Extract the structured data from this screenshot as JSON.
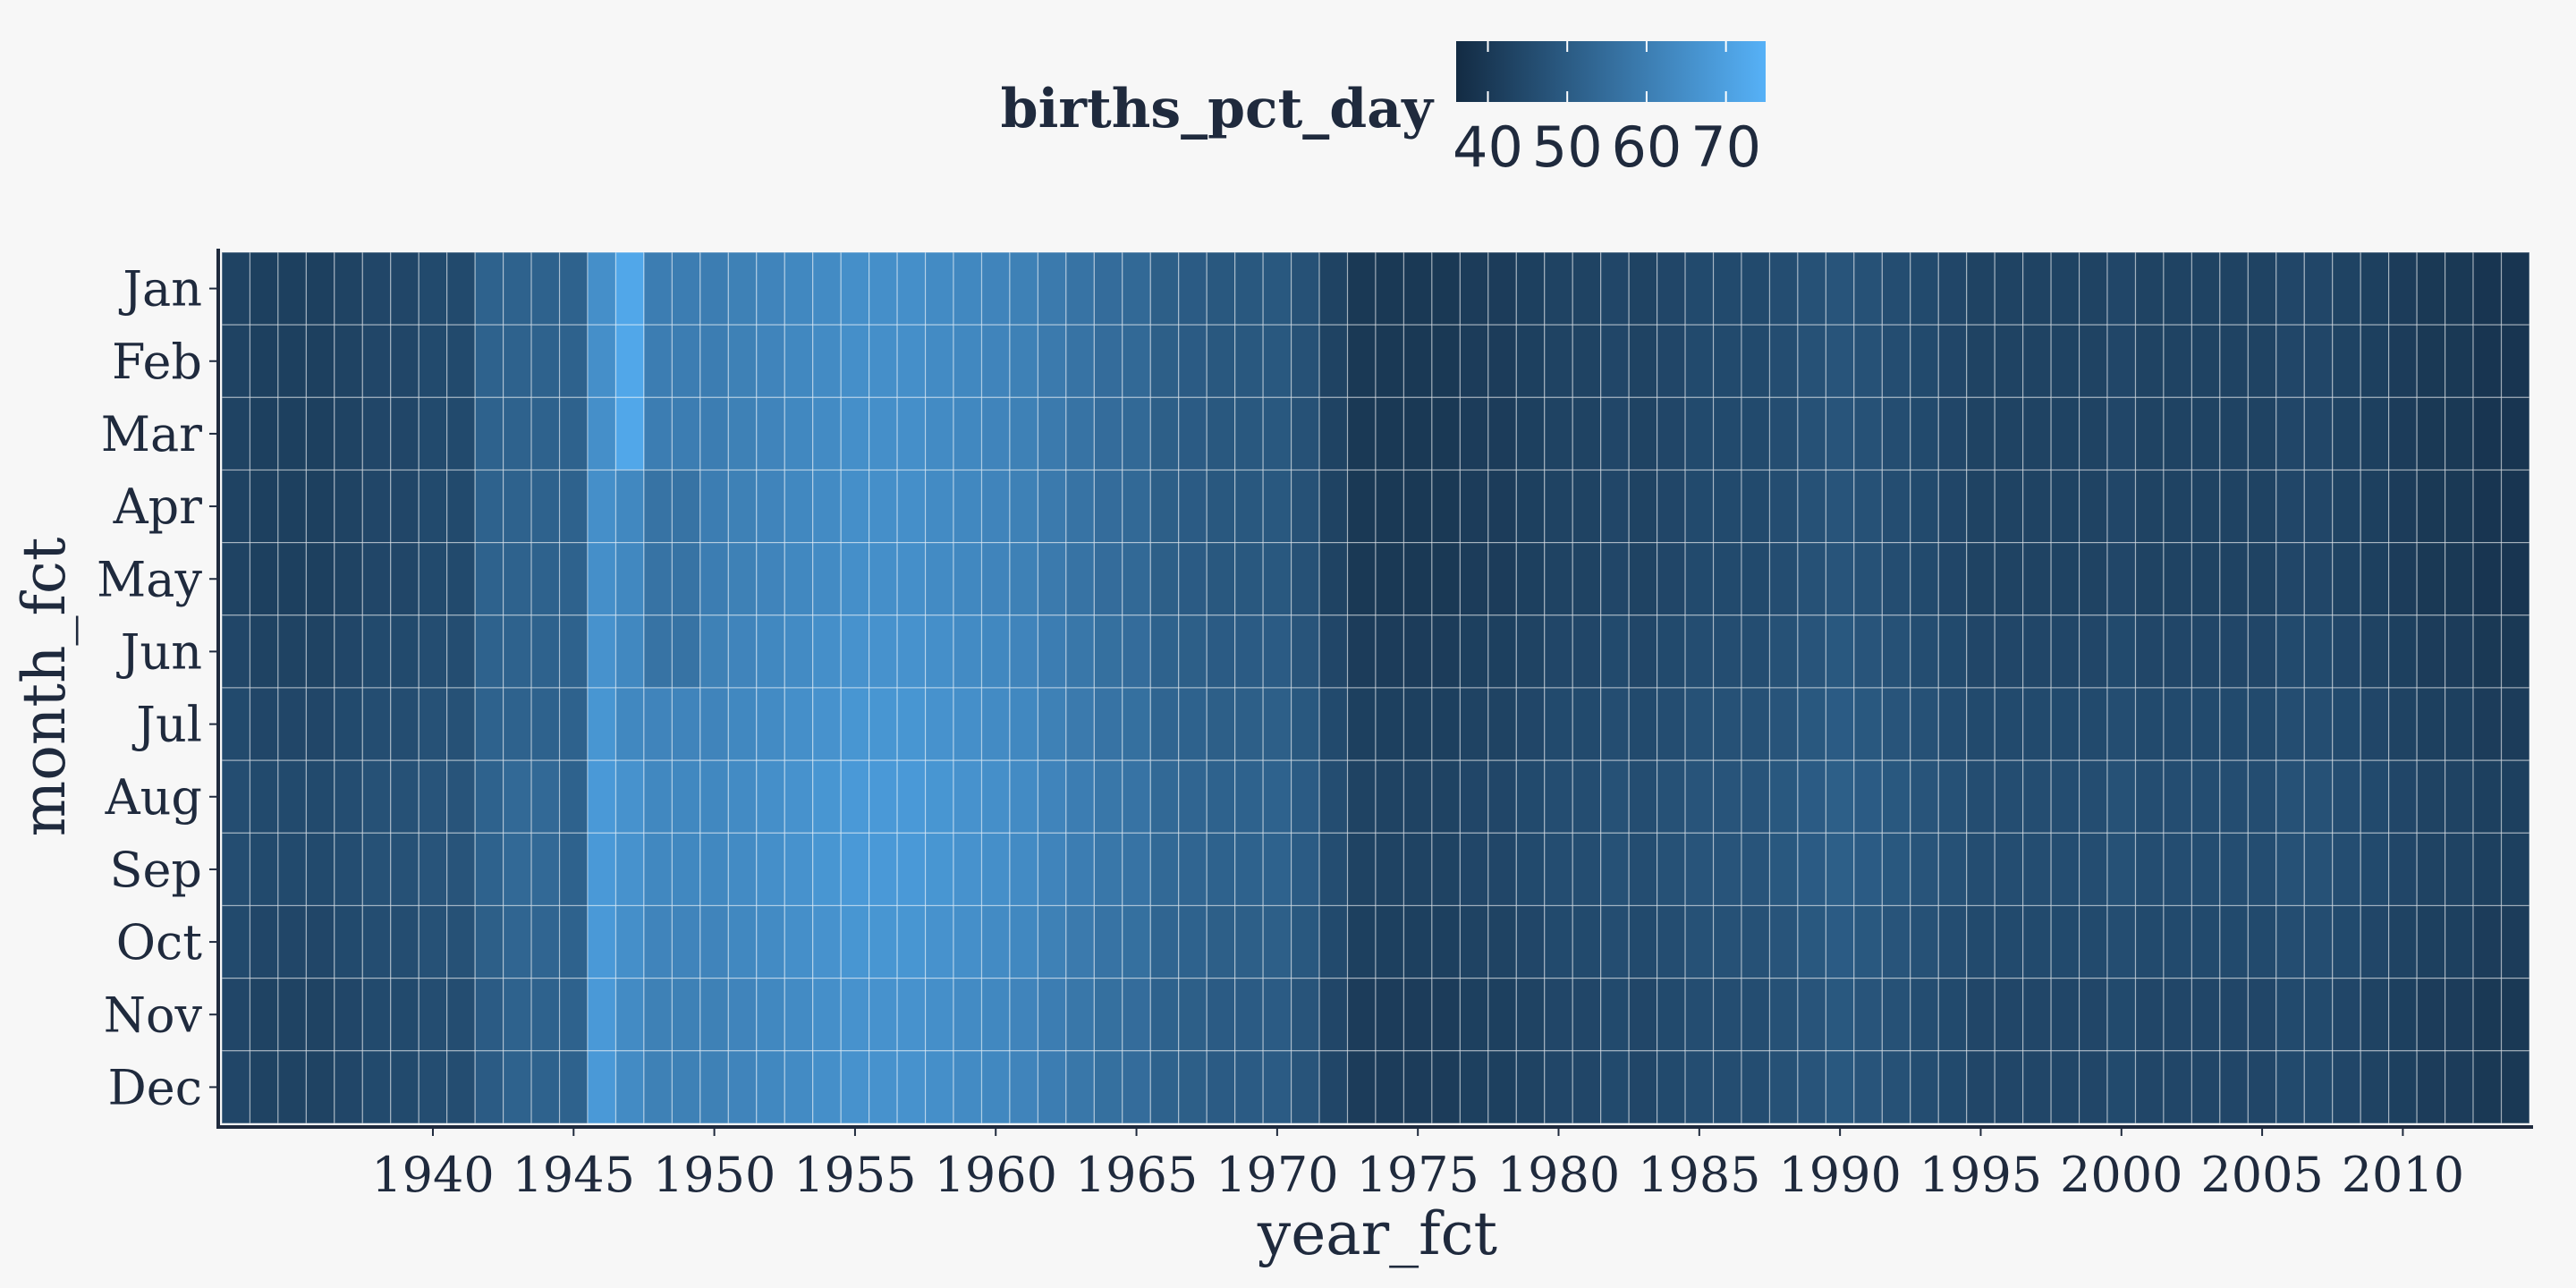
{
  "chart_data": {
    "type": "heatmap",
    "title": "",
    "xlabel": "year_fct",
    "ylabel": "month_fct",
    "legend": {
      "title": "births_pct_day",
      "tick_values": [
        40,
        50,
        60,
        70
      ],
      "tick_labels": [
        "40",
        "50",
        "60",
        "70"
      ],
      "range": [
        36,
        75
      ],
      "low_color": "#132b43",
      "high_color": "#56b1f7",
      "placement": "top"
    },
    "x_categories": [
      1933,
      1934,
      1935,
      1936,
      1937,
      1938,
      1939,
      1940,
      1941,
      1942,
      1943,
      1944,
      1945,
      1946,
      1947,
      1948,
      1949,
      1950,
      1951,
      1952,
      1953,
      1954,
      1955,
      1956,
      1957,
      1958,
      1959,
      1960,
      1961,
      1962,
      1963,
      1964,
      1965,
      1966,
      1967,
      1968,
      1969,
      1970,
      1971,
      1972,
      1973,
      1974,
      1975,
      1976,
      1977,
      1978,
      1979,
      1980,
      1981,
      1982,
      1983,
      1984,
      1985,
      1986,
      1987,
      1988,
      1989,
      1990,
      1991,
      1992,
      1993,
      1994,
      1995,
      1996,
      1997,
      1998,
      1999,
      2000,
      2001,
      2002,
      2003,
      2004,
      2005,
      2006,
      2007,
      2008,
      2009,
      2010,
      2011,
      2012,
      2013,
      2014
    ],
    "x_tick_labels": [
      "1940",
      "1945",
      "1950",
      "1955",
      "1960",
      "1965",
      "1970",
      "1975",
      "1980",
      "1985",
      "1990",
      "1995",
      "2000",
      "2005",
      "2010"
    ],
    "y_categories": [
      "Jan",
      "Feb",
      "Mar",
      "Apr",
      "May",
      "Jun",
      "Jul",
      "Aug",
      "Sep",
      "Oct",
      "Nov",
      "Dec"
    ],
    "value_model": {
      "description_keys": [
        "year_base",
        "seasonal_offset",
        "overrides"
      ],
      "year_base": {
        "1933": 44,
        "1934": 43,
        "1935": 43,
        "1936": 43,
        "1937": 44,
        "1938": 45,
        "1939": 45,
        "1940": 46,
        "1941": 46,
        "1942": 50,
        "1943": 52,
        "1944": 52,
        "1945": 53,
        "1946": 66,
        "1947": 64,
        "1948": 61,
        "1949": 61,
        "1950": 61,
        "1951": 62,
        "1952": 63,
        "1953": 64,
        "1954": 65,
        "1955": 66,
        "1956": 66,
        "1957": 66,
        "1958": 65,
        "1959": 64,
        "1960": 63,
        "1961": 62,
        "1962": 60,
        "1963": 58,
        "1964": 56,
        "1965": 55,
        "1966": 52,
        "1967": 51,
        "1968": 50,
        "1969": 50,
        "1970": 50,
        "1971": 48,
        "1972": 44,
        "1973": 41,
        "1974": 41,
        "1975": 41,
        "1976": 41,
        "1977": 42,
        "1978": 42,
        "1979": 43,
        "1980": 44,
        "1981": 44,
        "1982": 45,
        "1983": 44,
        "1984": 45,
        "1985": 46,
        "1986": 46,
        "1987": 46,
        "1988": 47,
        "1989": 48,
        "1990": 49,
        "1991": 48,
        "1992": 47,
        "1993": 46,
        "1994": 45,
        "1995": 44,
        "1996": 44,
        "1997": 44,
        "1998": 44,
        "1999": 44,
        "2000": 45,
        "2001": 44,
        "2002": 44,
        "2003": 44,
        "2004": 44,
        "2005": 44,
        "2006": 45,
        "2007": 45,
        "2008": 44,
        "2009": 43,
        "2010": 42,
        "2011": 41,
        "2012": 41,
        "2013": 40,
        "2014": 40
      },
      "seasonal_offset": {
        "Jan": -1,
        "Feb": -1,
        "Mar": -1,
        "Apr": -1,
        "May": -1,
        "Jun": 0,
        "Jul": 1,
        "Aug": 2,
        "Sep": 2,
        "Oct": 1,
        "Nov": 0,
        "Dec": 0
      },
      "overrides": [
        {
          "years": [
            1942,
            1943,
            1944,
            1945
          ],
          "months": [
            "Jan",
            "Feb",
            "Mar",
            "Apr",
            "May",
            "Jun",
            "Jul"
          ],
          "value": 52
        },
        {
          "years": [
            1945
          ],
          "months": [
            "Jan",
            "Feb",
            "Mar",
            "Apr",
            "May",
            "Jun",
            "Jul",
            "Aug",
            "Sep",
            "Oct",
            "Nov",
            "Dec"
          ],
          "value": 52
        },
        {
          "years": [
            1946
          ],
          "months": [
            "Aug",
            "Sep",
            "Oct",
            "Nov",
            "Dec"
          ],
          "value": 68
        },
        {
          "years": [
            1947
          ],
          "months": [
            "Jan",
            "Feb",
            "Mar"
          ],
          "value": 72
        },
        {
          "years": [
            1947
          ],
          "months": [
            "Apr",
            "May",
            "Jun",
            "Jul"
          ],
          "value": 63
        },
        {
          "years": [
            1948,
            1949
          ],
          "months": [
            "Apr",
            "May",
            "Jun"
          ],
          "value": 57
        }
      ]
    }
  }
}
